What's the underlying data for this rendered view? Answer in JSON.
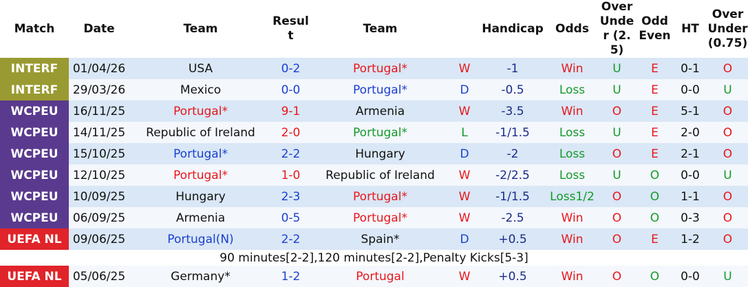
{
  "header": [
    "Match",
    "Date",
    "Team",
    "Result",
    "Team",
    "Handicap",
    "Odds",
    "Over Under (2.5)",
    "Odd Even",
    "HT",
    "Over Under (0.75)"
  ],
  "rows": [
    {
      "comp": "INTERF",
      "date": "01/04/26",
      "home": "USA",
      "score": "0-2",
      "away": "Portugal*",
      "result": "W",
      "handicap": "-1",
      "odds": "Win",
      "ou": "U",
      "oe": "E",
      "ht": "0-1",
      "ou2": "O"
    },
    {
      "comp": "INTERF",
      "date": "29/03/26",
      "home": "Mexico",
      "score": "0-0",
      "away": "Portugal*",
      "result": "D",
      "handicap": "-0.5",
      "odds": "Loss",
      "ou": "U",
      "oe": "E",
      "ht": "0-0",
      "ou2": "U"
    },
    {
      "comp": "WCPEU",
      "date": "16/11/25",
      "home": "Portugal*",
      "score": "9-1",
      "away": "Armenia",
      "result": "W",
      "handicap": "-3.5",
      "odds": "Win",
      "ou": "O",
      "oe": "E",
      "ht": "5-1",
      "ou2": "O"
    },
    {
      "comp": "WCPEU",
      "date": "14/11/25",
      "home": "Republic of Ireland",
      "score": "2-0",
      "away": "Portugal*",
      "result": "L",
      "handicap": "-1/1.5",
      "odds": "Loss",
      "ou": "U",
      "oe": "E",
      "ht": "2-0",
      "ou2": "O"
    },
    {
      "comp": "WCPEU",
      "date": "15/10/25",
      "home": "Portugal*",
      "score": "2-2",
      "away": "Hungary",
      "result": "D",
      "handicap": "-2",
      "odds": "Loss",
      "ou": "O",
      "oe": "E",
      "ht": "2-1",
      "ou2": "O"
    },
    {
      "comp": "WCPEU",
      "date": "12/10/25",
      "home": "Portugal*",
      "score": "1-0",
      "away": "Republic of Ireland",
      "result": "W",
      "handicap": "-2/2.5",
      "odds": "Loss",
      "ou": "U",
      "oe": "O",
      "ht": "0-0",
      "ou2": "U"
    },
    {
      "comp": "WCPEU",
      "date": "10/09/25",
      "home": "Hungary",
      "score": "2-3",
      "away": "Portugal*",
      "result": "W",
      "handicap": "-1/1.5",
      "odds": "Loss1/2",
      "ou": "O",
      "oe": "O",
      "ht": "1-1",
      "ou2": "O"
    },
    {
      "comp": "WCPEU",
      "date": "06/09/25",
      "home": "Armenia",
      "score": "0-5",
      "away": "Portugal*",
      "result": "W",
      "handicap": "-2.5",
      "odds": "Win",
      "ou": "O",
      "oe": "O",
      "ht": "0-3",
      "ou2": "O"
    },
    {
      "comp": "UEFA NL",
      "date": "09/06/25",
      "home": "Portugal(N)",
      "score": "2-2",
      "away": "Spain*",
      "result": "D",
      "handicap": "+0.5",
      "odds": "Win",
      "ou": "O",
      "oe": "E",
      "ht": "1-2",
      "ou2": "O",
      "note": "90 minutes[2-2],120 minutes[2-2],Penalty Kicks[5-3]"
    },
    {
      "comp": "UEFA NL",
      "date": "05/06/25",
      "home": "Germany*",
      "score": "1-2",
      "away": "Portugal",
      "result": "W",
      "handicap": "+0.5",
      "odds": "Win",
      "ou": "O",
      "oe": "O",
      "ht": "0-0",
      "ou2": "U"
    }
  ]
}
